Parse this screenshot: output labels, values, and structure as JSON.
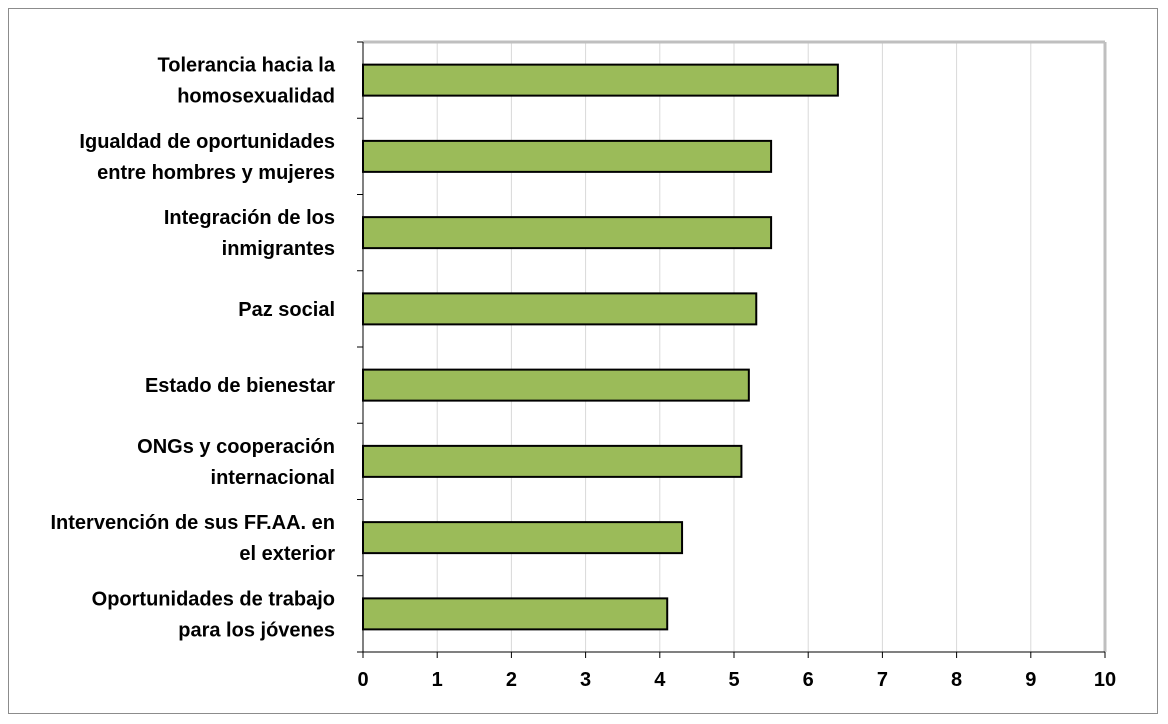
{
  "chart_data": {
    "type": "bar",
    "orientation": "horizontal",
    "categories": [
      [
        "Tolerancia hacia la",
        "homosexualidad"
      ],
      [
        "Igualdad de oportunidades",
        "entre hombres y mujeres"
      ],
      [
        "Integración de los",
        "inmigrantes"
      ],
      [
        "Paz social"
      ],
      [
        "Estado de bienestar"
      ],
      [
        "ONGs y cooperación",
        "internacional"
      ],
      [
        "Intervención de sus FF.AA. en",
        "el exterior"
      ],
      [
        "Oportunidades de trabajo",
        "para los jóvenes"
      ]
    ],
    "values": [
      6.4,
      5.5,
      5.5,
      5.3,
      5.2,
      5.1,
      4.3,
      4.1
    ],
    "xlim": [
      0,
      10
    ],
    "xticks": [
      "0",
      "1",
      "2",
      "3",
      "4",
      "5",
      "6",
      "7",
      "8",
      "9",
      "10"
    ],
    "grid": true,
    "bar_color": "#9bbb59",
    "bar_border_color": "#000000",
    "title": "",
    "xlabel": "",
    "ylabel": ""
  }
}
